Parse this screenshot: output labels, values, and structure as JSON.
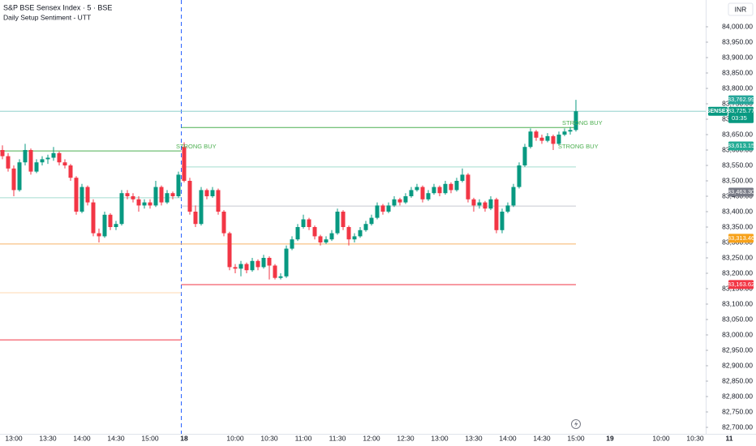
{
  "chart_data": {
    "type": "candlestick",
    "title": "S&P BSE Sensex Index · 5 · BSE",
    "subtitle": "Daily Setup Sentiment - UTT",
    "currency": "INR",
    "up_color": "#089981",
    "down_color": "#f23645",
    "open": [
      83600,
      83580,
      83540,
      83470,
      83560,
      83600,
      83530,
      83560,
      83570,
      83575,
      83590,
      83560,
      83550,
      83510,
      83400,
      83480,
      83430,
      83330,
      83320,
      83390,
      83350,
      83360,
      83460,
      83450,
      83440,
      83420,
      83430,
      83420,
      83480,
      83430,
      83460,
      83450,
      83610,
      83500,
      83400,
      83360,
      83470,
      83450,
      83470,
      83400,
      83330,
      83220,
      83215,
      83230,
      83210,
      83240,
      83220,
      83250,
      83225,
      83185,
      83190,
      83280,
      83310,
      83350,
      83375,
      83350,
      83320,
      83300,
      83310,
      83330,
      83400,
      83350,
      83310,
      83320,
      83340,
      83360,
      83380,
      83420,
      83400,
      83420,
      83440,
      83430,
      83450,
      83470,
      83480,
      83440,
      83460,
      83480,
      83460,
      83490,
      83470,
      83500,
      83520,
      83440,
      83420,
      83430,
      83410,
      83440,
      83340,
      83400,
      83420,
      83480,
      83550,
      83610,
      83660,
      83640,
      83630,
      83645,
      83620,
      83650,
      83660,
      83665
    ],
    "high": [
      83615,
      83590,
      83550,
      83570,
      83620,
      83605,
      83570,
      83580,
      83585,
      83610,
      83595,
      83570,
      83555,
      83515,
      83490,
      83485,
      83440,
      83345,
      83400,
      83395,
      83370,
      83470,
      83470,
      83460,
      83450,
      83440,
      83440,
      83500,
      83485,
      83470,
      83465,
      83530,
      83625,
      83510,
      83420,
      83480,
      83475,
      83480,
      83475,
      83405,
      83335,
      83230,
      83240,
      83235,
      83250,
      83245,
      83260,
      83255,
      83230,
      83200,
      83290,
      83320,
      83360,
      83390,
      83380,
      83355,
      83325,
      83320,
      83340,
      83410,
      83405,
      83355,
      83330,
      83350,
      83370,
      83390,
      83430,
      83425,
      83430,
      83450,
      83445,
      83460,
      83480,
      83490,
      83485,
      83470,
      83490,
      83485,
      83500,
      83495,
      83510,
      83540,
      83525,
      83445,
      83440,
      83435,
      83450,
      83445,
      83410,
      83430,
      83490,
      83560,
      83620,
      83670,
      83665,
      83650,
      83655,
      83650,
      83660,
      83670,
      83675,
      83762.99
    ],
    "low": [
      83570,
      83530,
      83450,
      83465,
      83550,
      83520,
      83525,
      83550,
      83555,
      83565,
      83550,
      83540,
      83500,
      83390,
      83395,
      83420,
      83320,
      83300,
      83315,
      83340,
      83340,
      83355,
      83440,
      83430,
      83400,
      83410,
      83410,
      83415,
      83420,
      83425,
      83440,
      83445,
      83495,
      83390,
      83350,
      83355,
      83440,
      83445,
      83390,
      83320,
      83210,
      83200,
      83190,
      83200,
      83205,
      83210,
      83215,
      83180,
      83180,
      83180,
      83185,
      83275,
      83305,
      83345,
      83340,
      83310,
      83290,
      83295,
      83305,
      83325,
      83340,
      83290,
      83300,
      83315,
      83335,
      83355,
      83375,
      83390,
      83395,
      83415,
      83420,
      83425,
      83445,
      83465,
      83430,
      83435,
      83455,
      83450,
      83455,
      83460,
      83465,
      83495,
      83430,
      83400,
      83410,
      83400,
      83405,
      83330,
      83330,
      83395,
      83415,
      83475,
      83545,
      83605,
      83630,
      83620,
      83625,
      83600,
      83615,
      83645,
      83650,
      83660
    ],
    "close": [
      83580,
      83540,
      83470,
      83560,
      83600,
      83530,
      83560,
      83570,
      83575,
      83590,
      83560,
      83550,
      83510,
      83400,
      83480,
      83430,
      83330,
      83320,
      83390,
      83350,
      83360,
      83460,
      83450,
      83440,
      83420,
      83430,
      83420,
      83480,
      83430,
      83460,
      83450,
      83520,
      83500,
      83400,
      83360,
      83470,
      83450,
      83470,
      83400,
      83330,
      83220,
      83215,
      83230,
      83210,
      83240,
      83220,
      83250,
      83225,
      83185,
      83190,
      83280,
      83310,
      83350,
      83375,
      83350,
      83320,
      83300,
      83310,
      83330,
      83400,
      83350,
      83310,
      83320,
      83340,
      83360,
      83380,
      83420,
      83400,
      83420,
      83440,
      83430,
      83450,
      83470,
      83480,
      83440,
      83460,
      83480,
      83460,
      83490,
      83470,
      83500,
      83520,
      83440,
      83420,
      83430,
      83410,
      83440,
      83340,
      83400,
      83420,
      83480,
      83550,
      83610,
      83660,
      83640,
      83630,
      83645,
      83620,
      83650,
      83660,
      83665,
      83725.77
    ],
    "x_tick_labels": [
      "13:00",
      "13:30",
      "14:00",
      "14:30",
      "15:00",
      "18",
      "10:00",
      "10:30",
      "11:00",
      "11:30",
      "12:00",
      "12:30",
      "13:00",
      "13:30",
      "14:00",
      "14:30",
      "15:00",
      "19",
      "10:00",
      "10:30",
      "11"
    ],
    "ylim": [
      82700,
      84000
    ],
    "yticks": [
      {
        "value": 82700,
        "label": "82,700.00"
      },
      {
        "value": 82750,
        "label": "82,750.00"
      },
      {
        "value": 82800,
        "label": "82,800.00"
      },
      {
        "value": 82850,
        "label": "82,850.00"
      },
      {
        "value": 82900,
        "label": "82,900.00"
      },
      {
        "value": 82950,
        "label": "82,950.00"
      },
      {
        "value": 83000,
        "label": "83,000.00"
      },
      {
        "value": 83050,
        "label": "83,050.00"
      },
      {
        "value": 83100,
        "label": "83,100.00"
      },
      {
        "value": 83150,
        "label": "83,150.00"
      },
      {
        "value": 83200,
        "label": "83,200.00"
      },
      {
        "value": 83250,
        "label": "83,250.00"
      },
      {
        "value": 83300,
        "label": "83,300.00"
      },
      {
        "value": 83350,
        "label": "83,350.00"
      },
      {
        "value": 83400,
        "label": "83,400.00"
      },
      {
        "value": 83450,
        "label": "83,450.00"
      },
      {
        "value": 83500,
        "label": "83,500.00"
      },
      {
        "value": 83550,
        "label": "83,550.00"
      },
      {
        "value": 83600,
        "label": "83,600.00"
      },
      {
        "value": 83650,
        "label": "83,650.00"
      },
      {
        "value": 83700,
        "label": "83,700.00"
      },
      {
        "value": 83750,
        "label": "83,750.00"
      },
      {
        "value": 83800,
        "label": "83,800.00"
      },
      {
        "value": 83850,
        "label": "83,850.00"
      },
      {
        "value": 83900,
        "label": "83,900.00"
      },
      {
        "value": 83950,
        "label": "83,950.00"
      },
      {
        "value": 84000,
        "label": "84,000.00"
      }
    ],
    "prev_session_levels": [
      {
        "value": 83597,
        "color": "#4caf50"
      },
      {
        "value": 83445,
        "color": "#a5dccf"
      },
      {
        "value": 83295,
        "color": "#f7b267"
      },
      {
        "value": 83137,
        "color": "#ffd8b0"
      },
      {
        "value": 82984,
        "color": "#f23645"
      }
    ],
    "session_levels": [
      {
        "value": 83673,
        "color": "#4caf50"
      },
      {
        "value": 83545,
        "color": "#a5dccf"
      },
      {
        "value": 83418,
        "color": "#c7c9d1"
      },
      {
        "value": 83295,
        "color": "#f7b267"
      },
      {
        "value": 83163,
        "color": "#f23645"
      }
    ],
    "annotations": [
      {
        "text": "STRONG BUY"
      },
      {
        "text": "STRONG BUY"
      },
      {
        "text": "STRONG BUY"
      }
    ],
    "last_price": {
      "name": "SENSEX",
      "value": 83725.77,
      "label": "83,725.77",
      "countdown": "03:35",
      "color": "#089981"
    },
    "price_labels": [
      {
        "value": 83762.99,
        "label": "83,762.99",
        "color": "#26a69a"
      },
      {
        "value": 83613.15,
        "label": "83,613.15",
        "color": "#22ab94"
      },
      {
        "value": 83463.3,
        "label": "83,463.30",
        "color": "#787b86"
      },
      {
        "value": 83313.46,
        "label": "83,313.46",
        "color": "#f7a21b"
      },
      {
        "value": 83163.62,
        "label": "83,163.62",
        "color": "#f23645"
      }
    ]
  }
}
